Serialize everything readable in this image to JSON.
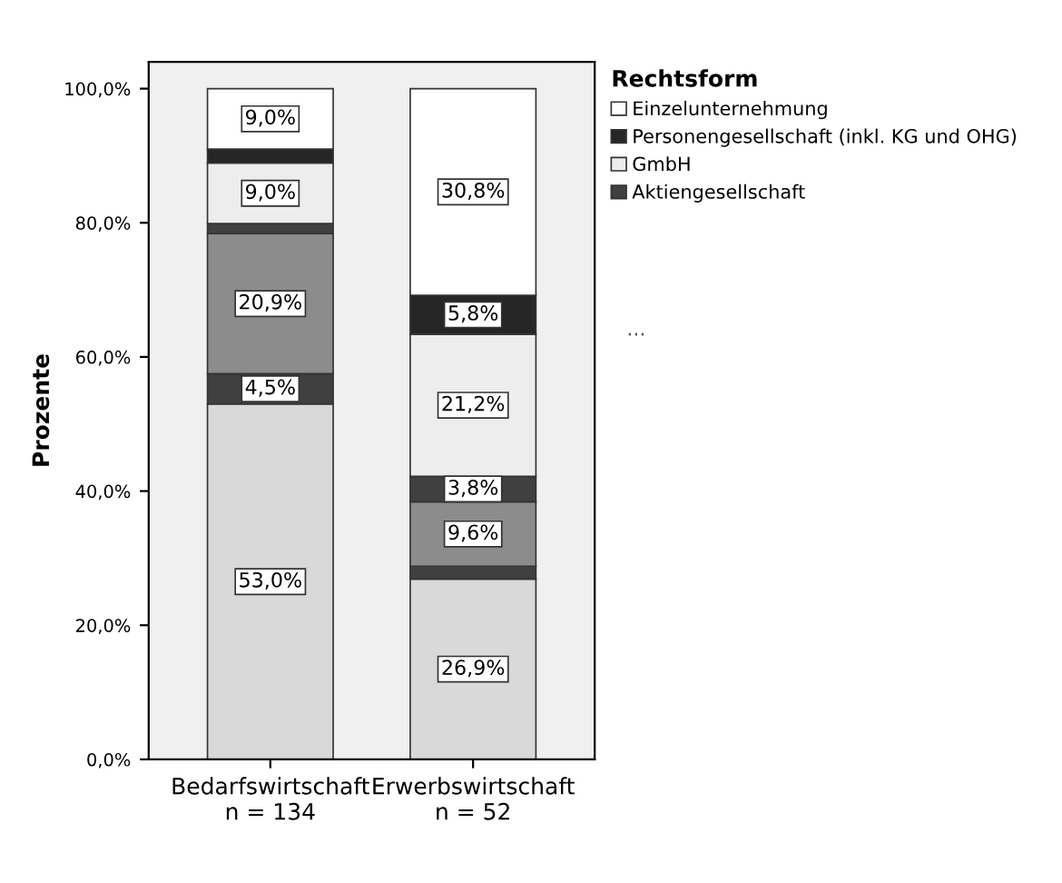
{
  "chart_data": {
    "type": "bar",
    "stacked": true,
    "ylabel": "Prozente",
    "legend_title": "Rechtsform",
    "legend": "right",
    "grid": false,
    "categories": [
      "Bedarfswirtschaft\nn = 134",
      "Erwerbswirtschaft\nn = 52"
    ],
    "ylim": [
      0,
      104
    ],
    "yticks": [
      {
        "value": 0,
        "label": "0,0%"
      },
      {
        "value": 20,
        "label": "20,0%"
      },
      {
        "value": 40,
        "label": "40,0%"
      },
      {
        "value": 60,
        "label": "60,0%"
      },
      {
        "value": 80,
        "label": "80,0%"
      },
      {
        "value": 100,
        "label": "100,0%"
      }
    ],
    "series": [
      {
        "color": "#d9d9d9",
        "values": [
          53.0,
          26.9
        ],
        "value_labels": [
          "53,0%",
          "26,9%"
        ]
      },
      {
        "color": "#404040",
        "values": [
          4.5,
          1.9
        ],
        "value_labels": [
          "4,5%",
          null
        ]
      },
      {
        "color": "#8c8c8c",
        "values": [
          20.9,
          9.6
        ],
        "value_labels": [
          "20,9%",
          "9,6%"
        ]
      },
      {
        "name": "Aktiengesellschaft",
        "color": "#404040",
        "values": [
          1.5,
          3.8
        ],
        "value_labels": [
          null,
          "3,8%"
        ]
      },
      {
        "name": "GmbH",
        "color": "#ededed",
        "values": [
          9.0,
          21.2
        ],
        "value_labels": [
          "9,0%",
          "21,2%"
        ]
      },
      {
        "name": "Personengesellschaft (inkl. KG und OHG)",
        "color": "#262626",
        "values": [
          2.1,
          5.8
        ],
        "value_labels": [
          null,
          "5,8%"
        ]
      },
      {
        "name": "Einzelunternehmung",
        "color": "#ffffff",
        "values": [
          9.0,
          30.8
        ],
        "value_labels": [
          "9,0%",
          "30,8%"
        ]
      }
    ],
    "annotations": [
      "..."
    ]
  }
}
